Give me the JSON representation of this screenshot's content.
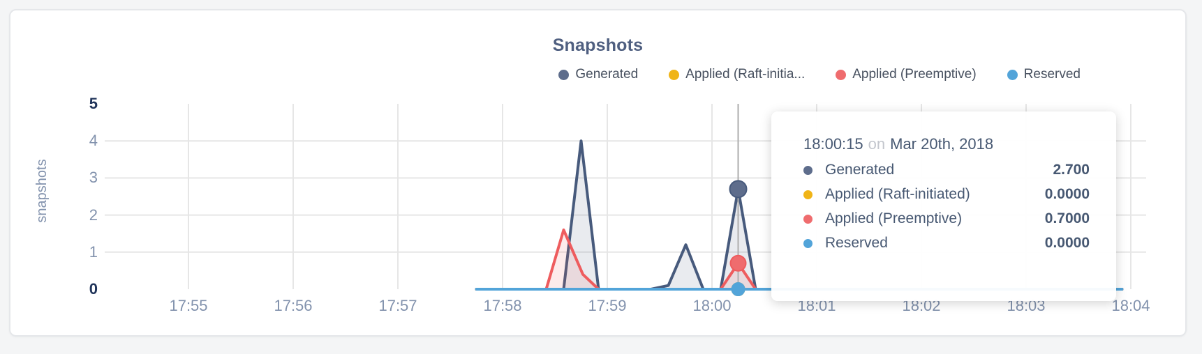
{
  "page": {
    "background": "#f4f5f6"
  },
  "card": {
    "background": "#ffffff",
    "border_color": "#e5e7ea"
  },
  "chart": {
    "title": "Snapshots",
    "ylabel": "snapshots"
  },
  "legend": {
    "items": [
      {
        "label": "Generated",
        "color": "#5e6d8c"
      },
      {
        "label": "Applied (Raft-initia...",
        "color": "#f0b417"
      },
      {
        "label": "Applied (Preemptive)",
        "color": "#ef6c6e"
      },
      {
        "label": "Reserved",
        "color": "#52a4d9"
      }
    ]
  },
  "tooltip": {
    "time": "18:00:15",
    "conjunction": "on",
    "date": "Mar 20th, 2018",
    "rows": [
      {
        "label": "Generated",
        "value": "2.700",
        "color": "#5e6d8c"
      },
      {
        "label": "Applied (Raft-initiated)",
        "value": "0.0000",
        "color": "#f0b417"
      },
      {
        "label": "Applied (Preemptive)",
        "value": "0.7000",
        "color": "#ef6c6e"
      },
      {
        "label": "Reserved",
        "value": "0.0000",
        "color": "#52a4d9"
      }
    ]
  },
  "chart_data": {
    "type": "area",
    "title": "Snapshots",
    "xlabel": "",
    "ylabel": "snapshots",
    "ylim": [
      0,
      5
    ],
    "y_ticks": [
      0,
      1,
      2,
      3,
      4,
      5
    ],
    "y_grid": [
      1,
      2,
      3,
      4
    ],
    "x_ticks": [
      "17:55",
      "17:56",
      "17:57",
      "17:58",
      "17:59",
      "18:00",
      "18:01",
      "18:02",
      "18:03",
      "18:04"
    ],
    "grid": true,
    "legend_position": "top-right",
    "data_start": "17:57:45",
    "data_end": "18:03:55",
    "selected": {
      "time": "18:00:15",
      "date": "Mar 20th, 2018"
    },
    "crosshair_color": "#aeaeae",
    "grid_color": "#e6e6e6",
    "series": [
      {
        "name": "Generated",
        "color": "#5e6d8c",
        "line_color": "#475a7c",
        "fill_opacity": 0.12,
        "selected_value": 2.7,
        "dot_radius": 12,
        "points": [
          [
            "17:57:45",
            0
          ],
          [
            "17:58:35",
            0
          ],
          [
            "17:58:45",
            4.0
          ],
          [
            "17:58:55",
            0
          ],
          [
            "17:59:25",
            0
          ],
          [
            "17:59:35",
            0.1
          ],
          [
            "17:59:45",
            1.2
          ],
          [
            "17:59:55",
            0
          ],
          [
            "18:00:05",
            0
          ],
          [
            "18:00:15",
            2.7
          ],
          [
            "18:00:25",
            0
          ],
          [
            "18:03:55",
            0
          ]
        ]
      },
      {
        "name": "Applied (Raft-initiated)",
        "color": "#f0b417",
        "line_color": "#f0b417",
        "fill_opacity": 0,
        "selected_value": 0,
        "dot_radius": 9,
        "points": [
          [
            "17:57:45",
            0
          ],
          [
            "18:03:55",
            0
          ]
        ]
      },
      {
        "name": "Applied (Preemptive)",
        "color": "#ef6c6e",
        "line_color": "#ee5c5e",
        "fill_opacity": 0.12,
        "selected_value": 0.7,
        "dot_radius": 11,
        "points": [
          [
            "17:57:45",
            0
          ],
          [
            "17:58:25",
            0
          ],
          [
            "17:58:35",
            1.6
          ],
          [
            "17:58:46",
            0.4
          ],
          [
            "17:58:55",
            0
          ],
          [
            "18:00:05",
            0
          ],
          [
            "18:00:15",
            0.7
          ],
          [
            "18:00:25",
            0
          ],
          [
            "18:03:55",
            0
          ]
        ]
      },
      {
        "name": "Reserved",
        "color": "#52a4d9",
        "line_color": "#52a4d9",
        "fill_opacity": 0,
        "selected_value": 0,
        "dot_radius": 9,
        "points": [
          [
            "17:57:45",
            0
          ],
          [
            "18:03:55",
            0
          ]
        ]
      }
    ]
  }
}
